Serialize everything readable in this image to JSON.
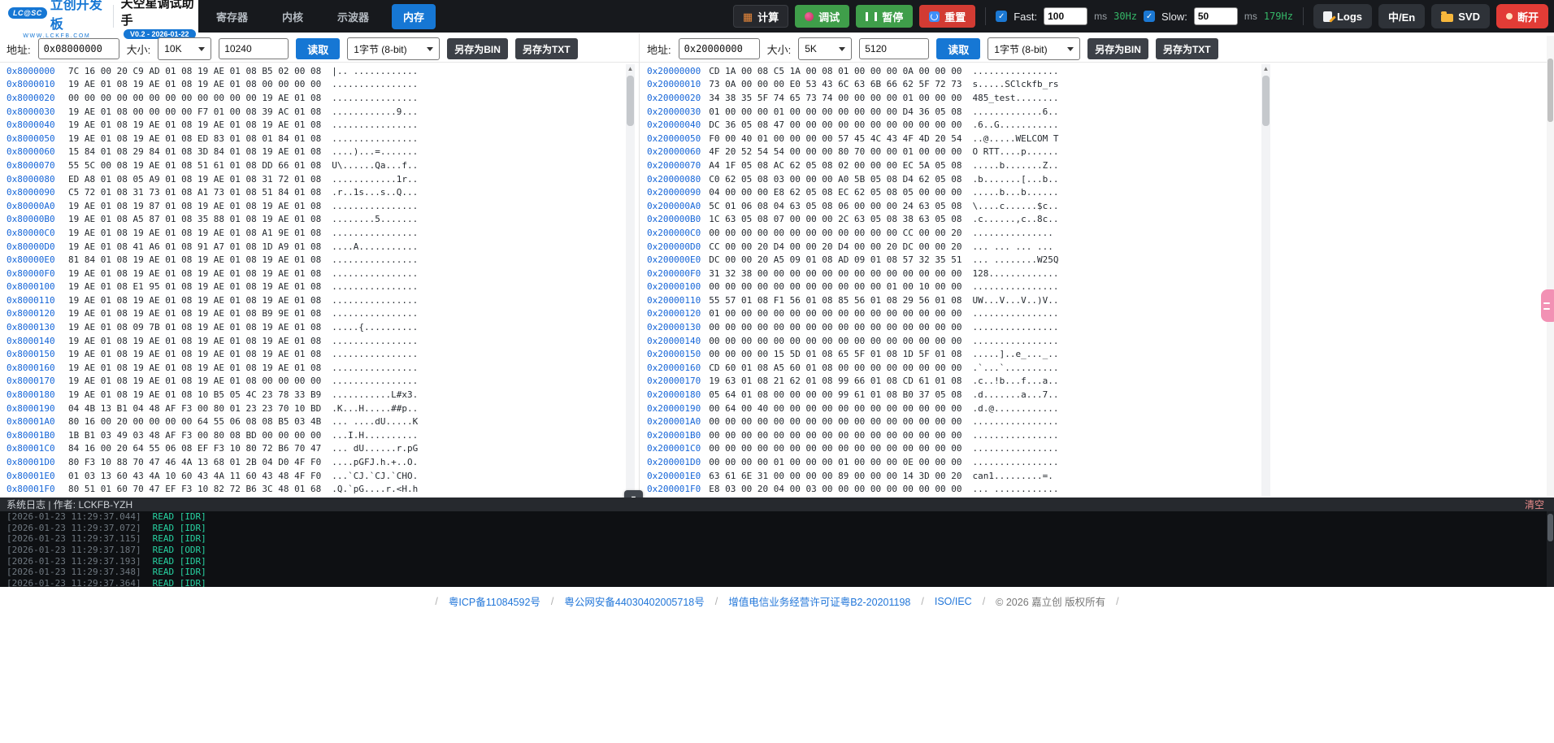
{
  "topbar": {
    "logo_badge": "LC@SC",
    "logo_main": "立创开发板",
    "logo_sub": "WWW.LCKFB.COM",
    "title": "天空星调试助手",
    "version": "V0.2 - 2026-01-22",
    "tabs": [
      {
        "label": "寄存器",
        "active": false
      },
      {
        "label": "内核",
        "active": false
      },
      {
        "label": "示波器",
        "active": false
      },
      {
        "label": "内存",
        "active": true
      }
    ],
    "calc_label": "计算",
    "debug_label": "调试",
    "pause_label": "暂停",
    "reset_label": "重置",
    "fast_label": "Fast:",
    "fast_value": "100",
    "fast_unit": "ms",
    "fast_hz": "30Hz",
    "slow_label": "Slow:",
    "slow_value": "50",
    "slow_unit": "ms",
    "slow_hz": "179Hz",
    "logs_label": "Logs",
    "lang_label": "中/En",
    "svd_label": "SVD",
    "disconnect_label": "断开",
    "accent_blue": "#1677d4",
    "green": "#3f9e4a",
    "red": "#d23b33"
  },
  "panels": [
    {
      "addr_label": "地址:",
      "addr_value": "0x08000000",
      "size_label": "大小:",
      "size_option": "10K",
      "size_value": "10240",
      "read_label": "读取",
      "width_option": "1字节 (8-bit)",
      "save_bin": "另存为BIN",
      "save_txt": "另存为TXT",
      "rows": [
        [
          "0x8000000",
          "7C 16 00 20 C9 AD 01 08 19 AE 01 08 B5 02 00 08"
        ],
        [
          "0x8000010",
          "19 AE 01 08 19 AE 01 08 19 AE 01 08 00 00 00 00"
        ],
        [
          "0x8000020",
          "00 00 00 00 00 00 00 00 00 00 00 00 19 AE 01 08"
        ],
        [
          "0x8000030",
          "19 AE 01 08 00 00 00 00 F7 01 00 08 39 AC 01 08"
        ],
        [
          "0x8000040",
          "19 AE 01 08 19 AE 01 08 19 AE 01 08 19 AE 01 08"
        ],
        [
          "0x8000050",
          "19 AE 01 08 19 AE 01 08 ED 83 01 08 01 84 01 08"
        ],
        [
          "0x8000060",
          "15 84 01 08 29 84 01 08 3D 84 01 08 19 AE 01 08"
        ],
        [
          "0x8000070",
          "55 5C 00 08 19 AE 01 08 51 61 01 08 DD 66 01 08"
        ],
        [
          "0x8000080",
          "ED A8 01 08 05 A9 01 08 19 AE 01 08 31 72 01 08"
        ],
        [
          "0x8000090",
          "C5 72 01 08 31 73 01 08 A1 73 01 08 51 84 01 08"
        ],
        [
          "0x80000A0",
          "19 AE 01 08 19 87 01 08 19 AE 01 08 19 AE 01 08"
        ],
        [
          "0x80000B0",
          "19 AE 01 08 A5 87 01 08 35 88 01 08 19 AE 01 08"
        ],
        [
          "0x80000C0",
          "19 AE 01 08 19 AE 01 08 19 AE 01 08 A1 9E 01 08"
        ],
        [
          "0x80000D0",
          "19 AE 01 08 41 A6 01 08 91 A7 01 08 1D A9 01 08"
        ],
        [
          "0x80000E0",
          "81 84 01 08 19 AE 01 08 19 AE 01 08 19 AE 01 08"
        ],
        [
          "0x80000F0",
          "19 AE 01 08 19 AE 01 08 19 AE 01 08 19 AE 01 08"
        ],
        [
          "0x8000100",
          "19 AE 01 08 E1 95 01 08 19 AE 01 08 19 AE 01 08"
        ],
        [
          "0x8000110",
          "19 AE 01 08 19 AE 01 08 19 AE 01 08 19 AE 01 08"
        ],
        [
          "0x8000120",
          "19 AE 01 08 19 AE 01 08 19 AE 01 08 B9 9E 01 08"
        ],
        [
          "0x8000130",
          "19 AE 01 08 09 7B 01 08 19 AE 01 08 19 AE 01 08"
        ],
        [
          "0x8000140",
          "19 AE 01 08 19 AE 01 08 19 AE 01 08 19 AE 01 08"
        ],
        [
          "0x8000150",
          "19 AE 01 08 19 AE 01 08 19 AE 01 08 19 AE 01 08"
        ],
        [
          "0x8000160",
          "19 AE 01 08 19 AE 01 08 19 AE 01 08 19 AE 01 08"
        ],
        [
          "0x8000170",
          "19 AE 01 08 19 AE 01 08 19 AE 01 08 00 00 00 00"
        ],
        [
          "0x8000180",
          "19 AE 01 08 19 AE 01 08 10 B5 05 4C 23 78 33 B9"
        ],
        [
          "0x8000190",
          "04 4B 13 B1 04 48 AF F3 00 80 01 23 23 70 10 BD"
        ],
        [
          "0x80001A0",
          "80 16 00 20 00 00 00 00 64 55 06 08 08 B5 03 4B"
        ],
        [
          "0x80001B0",
          "1B B1 03 49 03 48 AF F3 00 80 08 BD 00 00 00 00"
        ],
        [
          "0x80001C0",
          "84 16 00 20 64 55 06 08 EF F3 10 80 72 B6 70 47"
        ],
        [
          "0x80001D0",
          "80 F3 10 88 70 47 46 4A 13 68 01 2B 04 D0 4F F0"
        ],
        [
          "0x80001E0",
          "01 03 13 60 43 4A 10 60 43 4A 11 60 43 48 4F F0"
        ],
        [
          "0x80001F0",
          "80 51 01 60 70 47 EF F3 10 82 72 B6 3C 48 01 68"
        ]
      ]
    },
    {
      "addr_label": "地址:",
      "addr_value": "0x20000000",
      "size_label": "大小:",
      "size_option": "5K",
      "size_value": "5120",
      "read_label": "读取",
      "width_option": "1字节 (8-bit)",
      "save_bin": "另存为BIN",
      "save_txt": "另存为TXT",
      "rows": [
        [
          "0x20000000",
          "CD 1A 00 08 C5 1A 00 08 01 00 00 00 0A 00 00 00"
        ],
        [
          "0x20000010",
          "73 0A 00 00 00 E0 53 43 6C 63 6B 66 62 5F 72 73"
        ],
        [
          "0x20000020",
          "34 38 35 5F 74 65 73 74 00 00 00 00 01 00 00 00"
        ],
        [
          "0x20000030",
          "01 00 00 00 01 00 00 00 00 00 00 00 D4 36 05 08"
        ],
        [
          "0x20000040",
          "DC 36 05 08 47 00 00 00 00 00 00 00 00 00 00 00"
        ],
        [
          "0x20000050",
          "F0 00 40 01 00 00 00 00 57 45 4C 43 4F 4D 20 54"
        ],
        [
          "0x20000060",
          "4F 20 52 54 54 00 00 00 80 70 00 00 01 00 00 00"
        ],
        [
          "0x20000070",
          "A4 1F 05 08 AC 62 05 08 02 00 00 00 EC 5A 05 08"
        ],
        [
          "0x20000080",
          "C0 62 05 08 03 00 00 00 A0 5B 05 08 D4 62 05 08"
        ],
        [
          "0x20000090",
          "04 00 00 00 E8 62 05 08 EC 62 05 08 05 00 00 00"
        ],
        [
          "0x200000A0",
          "5C 01 06 08 04 63 05 08 06 00 00 00 24 63 05 08"
        ],
        [
          "0x200000B0",
          "1C 63 05 08 07 00 00 00 2C 63 05 08 38 63 05 08"
        ],
        [
          "0x200000C0",
          "00 00 00 00 00 00 00 00 00 00 00 00 CC 00 00 20"
        ],
        [
          "0x200000D0",
          "CC 00 00 20 D4 00 00 20 D4 00 00 20 DC 00 00 20"
        ],
        [
          "0x200000E0",
          "DC 00 00 20 A5 09 01 08 AD 09 01 08 57 32 35 51"
        ],
        [
          "0x200000F0",
          "31 32 38 00 00 00 00 00 00 00 00 00 00 00 00 00"
        ],
        [
          "0x20000100",
          "00 00 00 00 00 00 00 00 00 00 00 01 00 10 00 00"
        ],
        [
          "0x20000110",
          "55 57 01 08 F1 56 01 08 85 56 01 08 29 56 01 08"
        ],
        [
          "0x20000120",
          "01 00 00 00 00 00 00 00 00 00 00 00 00 00 00 00"
        ],
        [
          "0x20000130",
          "00 00 00 00 00 00 00 00 00 00 00 00 00 00 00 00"
        ],
        [
          "0x20000140",
          "00 00 00 00 00 00 00 00 00 00 00 00 00 00 00 00"
        ],
        [
          "0x20000150",
          "00 00 00 00 15 5D 01 08 65 5F 01 08 1D 5F 01 08"
        ],
        [
          "0x20000160",
          "CD 60 01 08 A5 60 01 08 00 00 00 00 00 00 00 00"
        ],
        [
          "0x20000170",
          "19 63 01 08 21 62 01 08 99 66 01 08 CD 61 01 08"
        ],
        [
          "0x20000180",
          "05 64 01 08 00 00 00 00 99 61 01 08 B0 37 05 08"
        ],
        [
          "0x20000190",
          "00 64 00 40 00 00 00 00 00 00 00 00 00 00 00 00"
        ],
        [
          "0x200001A0",
          "00 00 00 00 00 00 00 00 00 00 00 00 00 00 00 00"
        ],
        [
          "0x200001B0",
          "00 00 00 00 00 00 00 00 00 00 00 00 00 00 00 00"
        ],
        [
          "0x200001C0",
          "00 00 00 00 00 00 00 00 00 00 00 00 00 00 00 00"
        ],
        [
          "0x200001D0",
          "00 00 00 00 01 00 00 00 01 00 00 00 0E 00 00 00"
        ],
        [
          "0x200001E0",
          "63 61 6E 31 00 00 00 00 89 00 00 00 14 3D 00 20"
        ],
        [
          "0x200001F0",
          "E8 03 00 20 04 00 03 00 00 00 00 00 00 00 00 00"
        ]
      ]
    }
  ],
  "log": {
    "header": "系统日志  |  作者: LCKFB-YZH",
    "clear_label": "清空",
    "lines": [
      {
        "time": "[2026-01-23 11:29:37.044]",
        "msg": "READ [IDR]"
      },
      {
        "time": "[2026-01-23 11:29:37.072]",
        "msg": "READ [IDR]"
      },
      {
        "time": "[2026-01-23 11:29:37.115]",
        "msg": "READ [IDR]"
      },
      {
        "time": "[2026-01-23 11:29:37.187]",
        "msg": "READ [ODR]"
      },
      {
        "time": "[2026-01-23 11:29:37.193]",
        "msg": "READ [IDR]"
      },
      {
        "time": "[2026-01-23 11:29:37.348]",
        "msg": "READ [IDR]"
      },
      {
        "time": "[2026-01-23 11:29:37.364]",
        "msg": "READ [IDR]"
      }
    ]
  },
  "footer": {
    "items": [
      {
        "text": "/",
        "kind": "sep"
      },
      {
        "text": "粤ICP备11084592号",
        "kind": "link"
      },
      {
        "text": "/",
        "kind": "sep"
      },
      {
        "text": "粤公网安备44030402005718号",
        "kind": "link"
      },
      {
        "text": "/",
        "kind": "sep"
      },
      {
        "text": "增值电信业务经营许可证粤B2-20201198",
        "kind": "link"
      },
      {
        "text": "/",
        "kind": "sep"
      },
      {
        "text": "ISO/IEC",
        "kind": "link"
      },
      {
        "text": "/",
        "kind": "sep"
      },
      {
        "text": "© 2026 嘉立创 版权所有",
        "kind": "copy"
      },
      {
        "text": "/",
        "kind": "sep"
      }
    ]
  }
}
